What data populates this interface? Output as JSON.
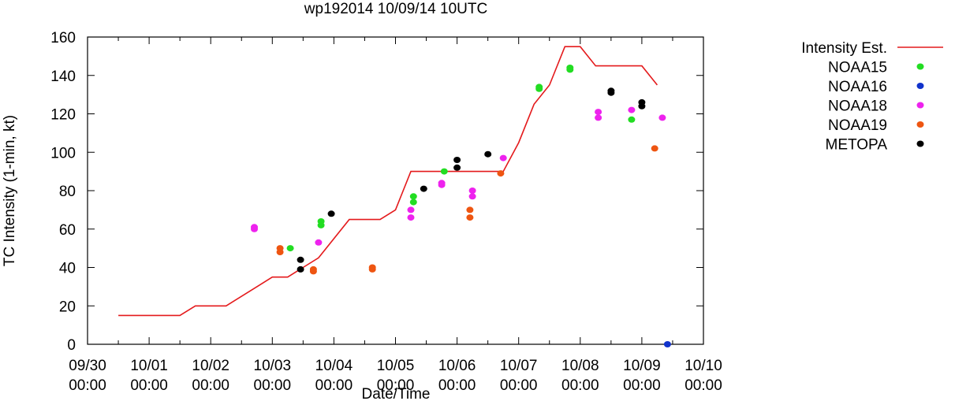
{
  "chart_data": {
    "type": "scatter",
    "title": "wp192014 10/09/14 10UTC",
    "xlabel": "Date/Time",
    "ylabel": "TC Intensity (1-min, kt)",
    "ylim": [
      0,
      160
    ],
    "yticks": [
      0,
      20,
      40,
      60,
      80,
      100,
      120,
      140,
      160
    ],
    "xlim": [
      "09/30 00:00",
      "10/10 00:00"
    ],
    "xticks": [
      {
        "top": "09/30",
        "bottom": "00:00"
      },
      {
        "top": "10/01",
        "bottom": "00:00"
      },
      {
        "top": "10/02",
        "bottom": "00:00"
      },
      {
        "top": "10/03",
        "bottom": "00:00"
      },
      {
        "top": "10/04",
        "bottom": "00:00"
      },
      {
        "top": "10/05",
        "bottom": "00:00"
      },
      {
        "top": "10/06",
        "bottom": "00:00"
      },
      {
        "top": "10/07",
        "bottom": "00:00"
      },
      {
        "top": "10/08",
        "bottom": "00:00"
      },
      {
        "top": "10/09",
        "bottom": "00:00"
      },
      {
        "top": "10/10",
        "bottom": "00:00"
      }
    ],
    "legend_position": "right",
    "series": [
      {
        "name": "Intensity Est.",
        "kind": "line",
        "color": "#e41a1c",
        "points": [
          [
            "09/30 12:00",
            15
          ],
          [
            "10/01 12:00",
            15
          ],
          [
            "10/01 18:00",
            20
          ],
          [
            "10/02 06:00",
            20
          ],
          [
            "10/02 18:00",
            30
          ],
          [
            "10/03 00:00",
            35
          ],
          [
            "10/03 06:00",
            35
          ],
          [
            "10/03 12:00",
            40
          ],
          [
            "10/03 18:00",
            45
          ],
          [
            "10/04 06:00",
            65
          ],
          [
            "10/04 18:00",
            65
          ],
          [
            "10/05 00:00",
            70
          ],
          [
            "10/05 06:00",
            90
          ],
          [
            "10/06 18:00",
            90
          ],
          [
            "10/07 00:00",
            105
          ],
          [
            "10/07 06:00",
            125
          ],
          [
            "10/07 12:00",
            135
          ],
          [
            "10/07 18:00",
            155
          ],
          [
            "10/08 00:00",
            155
          ],
          [
            "10/08 06:00",
            145
          ],
          [
            "10/09 00:00",
            145
          ],
          [
            "10/09 06:00",
            135
          ]
        ]
      },
      {
        "name": "NOAA15",
        "kind": "points",
        "color": "#22dd22",
        "points": [
          [
            "10/03 07:00",
            50
          ],
          [
            "10/03 19:00",
            62
          ],
          [
            "10/03 19:00",
            64
          ],
          [
            "10/05 07:00",
            74
          ],
          [
            "10/05 07:00",
            77
          ],
          [
            "10/05 19:00",
            90
          ],
          [
            "10/07 08:00",
            133
          ],
          [
            "10/07 08:00",
            134
          ],
          [
            "10/07 20:00",
            143
          ],
          [
            "10/07 20:00",
            144
          ],
          [
            "10/08 20:00",
            117
          ]
        ]
      },
      {
        "name": "NOAA16",
        "kind": "points",
        "color": "#1133cc",
        "points": [
          [
            "10/09 10:00",
            0
          ]
        ]
      },
      {
        "name": "NOAA18",
        "kind": "points",
        "color": "#ee22ee",
        "points": [
          [
            "10/02 17:00",
            60
          ],
          [
            "10/02 17:00",
            61
          ],
          [
            "10/03 18:00",
            53
          ],
          [
            "10/05 06:00",
            66
          ],
          [
            "10/05 06:00",
            70
          ],
          [
            "10/05 18:00",
            83
          ],
          [
            "10/05 18:00",
            84
          ],
          [
            "10/06 06:00",
            77
          ],
          [
            "10/06 06:00",
            80
          ],
          [
            "10/06 18:00",
            97
          ],
          [
            "10/08 07:00",
            118
          ],
          [
            "10/08 07:00",
            121
          ],
          [
            "10/08 20:00",
            122
          ],
          [
            "10/09 08:00",
            118
          ]
        ]
      },
      {
        "name": "NOAA19",
        "kind": "points",
        "color": "#ee5511",
        "points": [
          [
            "10/03 03:00",
            48
          ],
          [
            "10/03 03:00",
            50
          ],
          [
            "10/03 16:00",
            38
          ],
          [
            "10/03 16:00",
            39
          ],
          [
            "10/04 15:00",
            39
          ],
          [
            "10/04 15:00",
            40
          ],
          [
            "10/06 05:00",
            66
          ],
          [
            "10/06 05:00",
            70
          ],
          [
            "10/06 17:00",
            89
          ],
          [
            "10/09 05:00",
            102
          ]
        ]
      },
      {
        "name": "METOPA",
        "kind": "points",
        "color": "#000000",
        "points": [
          [
            "10/03 11:00",
            39
          ],
          [
            "10/03 11:00",
            44
          ],
          [
            "10/03 23:00",
            68
          ],
          [
            "10/05 11:00",
            81
          ],
          [
            "10/06 00:00",
            92
          ],
          [
            "10/06 00:00",
            96
          ],
          [
            "10/06 12:00",
            99
          ],
          [
            "10/08 12:00",
            131
          ],
          [
            "10/08 12:00",
            132
          ],
          [
            "10/09 00:00",
            124
          ],
          [
            "10/09 00:00",
            126
          ]
        ]
      }
    ]
  }
}
